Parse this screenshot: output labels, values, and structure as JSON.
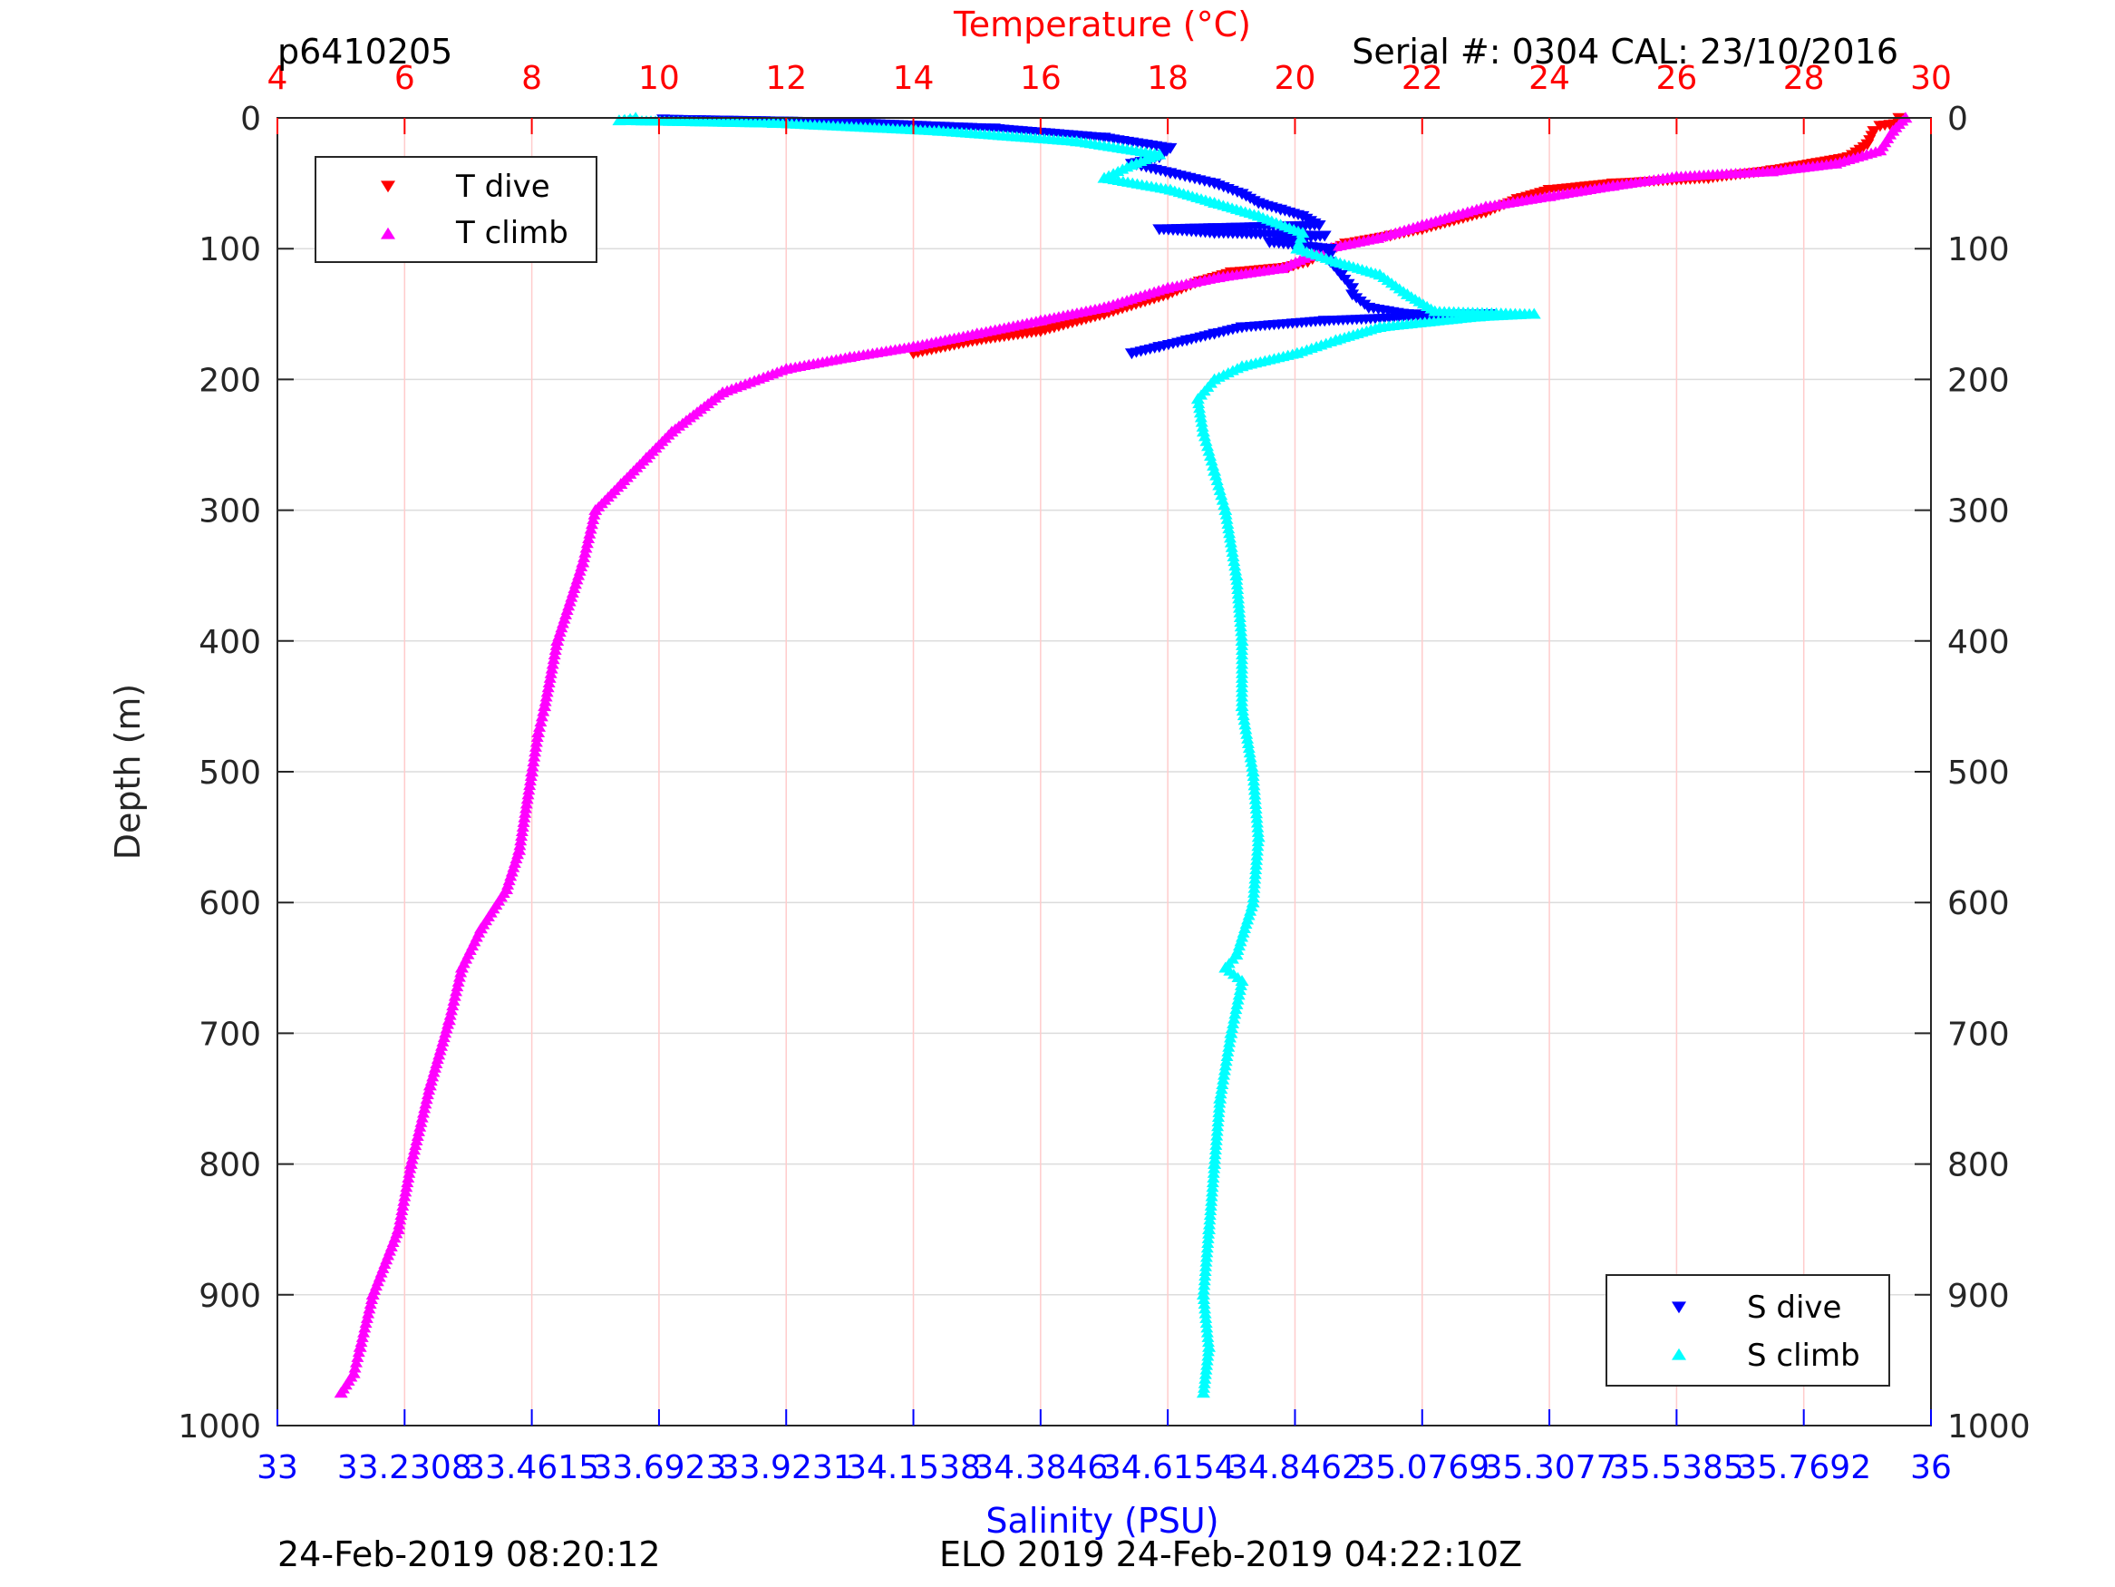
{
  "header": {
    "profile_id": "p6410205",
    "serial_info": "Serial #: 0304  CAL: 23/10/2016"
  },
  "footer": {
    "timestamp_left": "24-Feb-2019 08:20:12",
    "mission_info": "ELO 2019 24-Feb-2019 04:22:10Z"
  },
  "colors": {
    "t_dive": "#ff0000",
    "t_climb": "#ff00ff",
    "s_dive": "#0000ff",
    "s_climb": "#00ffff",
    "temp_axis": "#ff0000",
    "sal_axis": "#0000ff"
  },
  "chart_data": {
    "type": "scatter",
    "ylabel": "Depth (m)",
    "ylim": [
      0,
      1000
    ],
    "y_reversed": true,
    "y_ticks": [
      "0",
      "100",
      "200",
      "300",
      "400",
      "500",
      "600",
      "700",
      "800",
      "900",
      "1000"
    ],
    "temperature_axis": {
      "label": "Temperature (°C)",
      "position": "top",
      "range": [
        4,
        30
      ],
      "ticks": [
        "4",
        "6",
        "8",
        "10",
        "12",
        "14",
        "16",
        "18",
        "20",
        "22",
        "24",
        "26",
        "28",
        "30"
      ]
    },
    "salinity_axis": {
      "label": "Salinity (PSU)",
      "position": "bottom",
      "range": [
        33,
        36
      ],
      "ticks": [
        "33",
        "33.2308",
        "33.4615",
        "33.6923",
        "33.9231",
        "34.1538",
        "34.3846",
        "34.6154",
        "34.8462",
        "35.0769",
        "35.3077",
        "35.5385",
        "35.7692",
        "36"
      ]
    },
    "grid": true,
    "legends": [
      {
        "placement": "top-left",
        "entries": [
          "T dive",
          "T climb"
        ]
      },
      {
        "placement": "bottom-right",
        "entries": [
          "S dive",
          "S climb"
        ]
      }
    ],
    "series": [
      {
        "name": "T dive",
        "axis": "temperature",
        "marker": "triangle-down",
        "points": [
          [
            29.5,
            0
          ],
          [
            29.5,
            4
          ],
          [
            29.2,
            6
          ],
          [
            29.1,
            10
          ],
          [
            29.0,
            20
          ],
          [
            28.7,
            30
          ],
          [
            27.5,
            40
          ],
          [
            26.5,
            46
          ],
          [
            25.0,
            50
          ],
          [
            24.0,
            55
          ],
          [
            23.5,
            62
          ],
          [
            23.0,
            72
          ],
          [
            22.0,
            85
          ],
          [
            21.5,
            90
          ],
          [
            20.8,
            96
          ],
          [
            20.5,
            102
          ],
          [
            20.2,
            110
          ],
          [
            19.9,
            114
          ],
          [
            19.0,
            118
          ],
          [
            18.5,
            125
          ],
          [
            18.0,
            135
          ],
          [
            17.0,
            150
          ],
          [
            16.0,
            163
          ],
          [
            15.0,
            170
          ],
          [
            14.0,
            180
          ]
        ]
      },
      {
        "name": "T climb",
        "axis": "temperature",
        "marker": "triangle-up",
        "points": [
          [
            29.6,
            0
          ],
          [
            29.4,
            10
          ],
          [
            29.2,
            25
          ],
          [
            28.5,
            35
          ],
          [
            27.5,
            41
          ],
          [
            26.0,
            45
          ],
          [
            25.0,
            52
          ],
          [
            24.0,
            60
          ],
          [
            23.0,
            68
          ],
          [
            22.0,
            82
          ],
          [
            21.3,
            92
          ],
          [
            20.5,
            100
          ],
          [
            19.8,
            115
          ],
          [
            18.8,
            122
          ],
          [
            18.0,
            130
          ],
          [
            17.0,
            145
          ],
          [
            16.0,
            155
          ],
          [
            15.0,
            165
          ],
          [
            14.0,
            175
          ],
          [
            13.0,
            183
          ],
          [
            12.0,
            192
          ],
          [
            11.0,
            210
          ],
          [
            10.2,
            240
          ],
          [
            9.8,
            260
          ],
          [
            9.4,
            280
          ],
          [
            9.0,
            300
          ],
          [
            8.8,
            340
          ],
          [
            8.4,
            400
          ],
          [
            8.2,
            450
          ],
          [
            8.1,
            470
          ],
          [
            8.0,
            500
          ],
          [
            7.8,
            560
          ],
          [
            7.6,
            590
          ],
          [
            7.2,
            620
          ],
          [
            6.9,
            650
          ],
          [
            6.7,
            690
          ],
          [
            6.4,
            740
          ],
          [
            6.1,
            800
          ],
          [
            5.9,
            850
          ],
          [
            5.5,
            900
          ],
          [
            5.3,
            940
          ],
          [
            5.2,
            960
          ],
          [
            5.0,
            975
          ]
        ]
      },
      {
        "name": "S dive",
        "axis": "salinity",
        "marker": "triangle-down",
        "points": [
          [
            33.7,
            1
          ],
          [
            34.0,
            3
          ],
          [
            34.3,
            8
          ],
          [
            34.5,
            15
          ],
          [
            34.62,
            23
          ],
          [
            34.6,
            30
          ],
          [
            34.55,
            35
          ],
          [
            34.62,
            42
          ],
          [
            34.7,
            50
          ],
          [
            34.75,
            58
          ],
          [
            34.78,
            65
          ],
          [
            34.82,
            70
          ],
          [
            34.86,
            75
          ],
          [
            34.89,
            82
          ],
          [
            34.9,
            90
          ],
          [
            34.91,
            100
          ],
          [
            34.91,
            110
          ],
          [
            34.93,
            120
          ],
          [
            34.95,
            130
          ],
          [
            34.98,
            145
          ],
          [
            35.05,
            150
          ],
          [
            34.9,
            155
          ],
          [
            34.75,
            160
          ],
          [
            34.7,
            165
          ],
          [
            34.65,
            170
          ],
          [
            34.6,
            175
          ],
          [
            34.55,
            180
          ],
          [
            34.8,
            95
          ],
          [
            34.7,
            88
          ],
          [
            34.6,
            85
          ],
          [
            34.95,
            135
          ],
          [
            35.2,
            150
          ]
        ]
      },
      {
        "name": "S climb",
        "axis": "salinity",
        "marker": "triangle-up",
        "points": [
          [
            33.62,
            2
          ],
          [
            33.65,
            0
          ],
          [
            33.9,
            4
          ],
          [
            34.2,
            10
          ],
          [
            34.45,
            18
          ],
          [
            34.6,
            28
          ],
          [
            34.55,
            36
          ],
          [
            34.5,
            46
          ],
          [
            34.62,
            55
          ],
          [
            34.7,
            65
          ],
          [
            34.78,
            75
          ],
          [
            34.86,
            88
          ],
          [
            34.85,
            100
          ],
          [
            34.92,
            110
          ],
          [
            35.0,
            120
          ],
          [
            35.05,
            135
          ],
          [
            35.1,
            148
          ],
          [
            35.18,
            152
          ],
          [
            35.28,
            150
          ],
          [
            35.0,
            160
          ],
          [
            34.92,
            170
          ],
          [
            34.85,
            180
          ],
          [
            34.75,
            190
          ],
          [
            34.7,
            200
          ],
          [
            34.67,
            215
          ],
          [
            34.68,
            240
          ],
          [
            34.7,
            270
          ],
          [
            34.72,
            300
          ],
          [
            34.74,
            350
          ],
          [
            34.75,
            400
          ],
          [
            34.75,
            450
          ],
          [
            34.77,
            500
          ],
          [
            34.78,
            550
          ],
          [
            34.77,
            600
          ],
          [
            34.74,
            640
          ],
          [
            34.72,
            650
          ],
          [
            34.75,
            660
          ],
          [
            34.73,
            700
          ],
          [
            34.71,
            750
          ],
          [
            34.7,
            800
          ],
          [
            34.69,
            850
          ],
          [
            34.68,
            900
          ],
          [
            34.69,
            940
          ],
          [
            34.68,
            975
          ]
        ]
      }
    ]
  }
}
